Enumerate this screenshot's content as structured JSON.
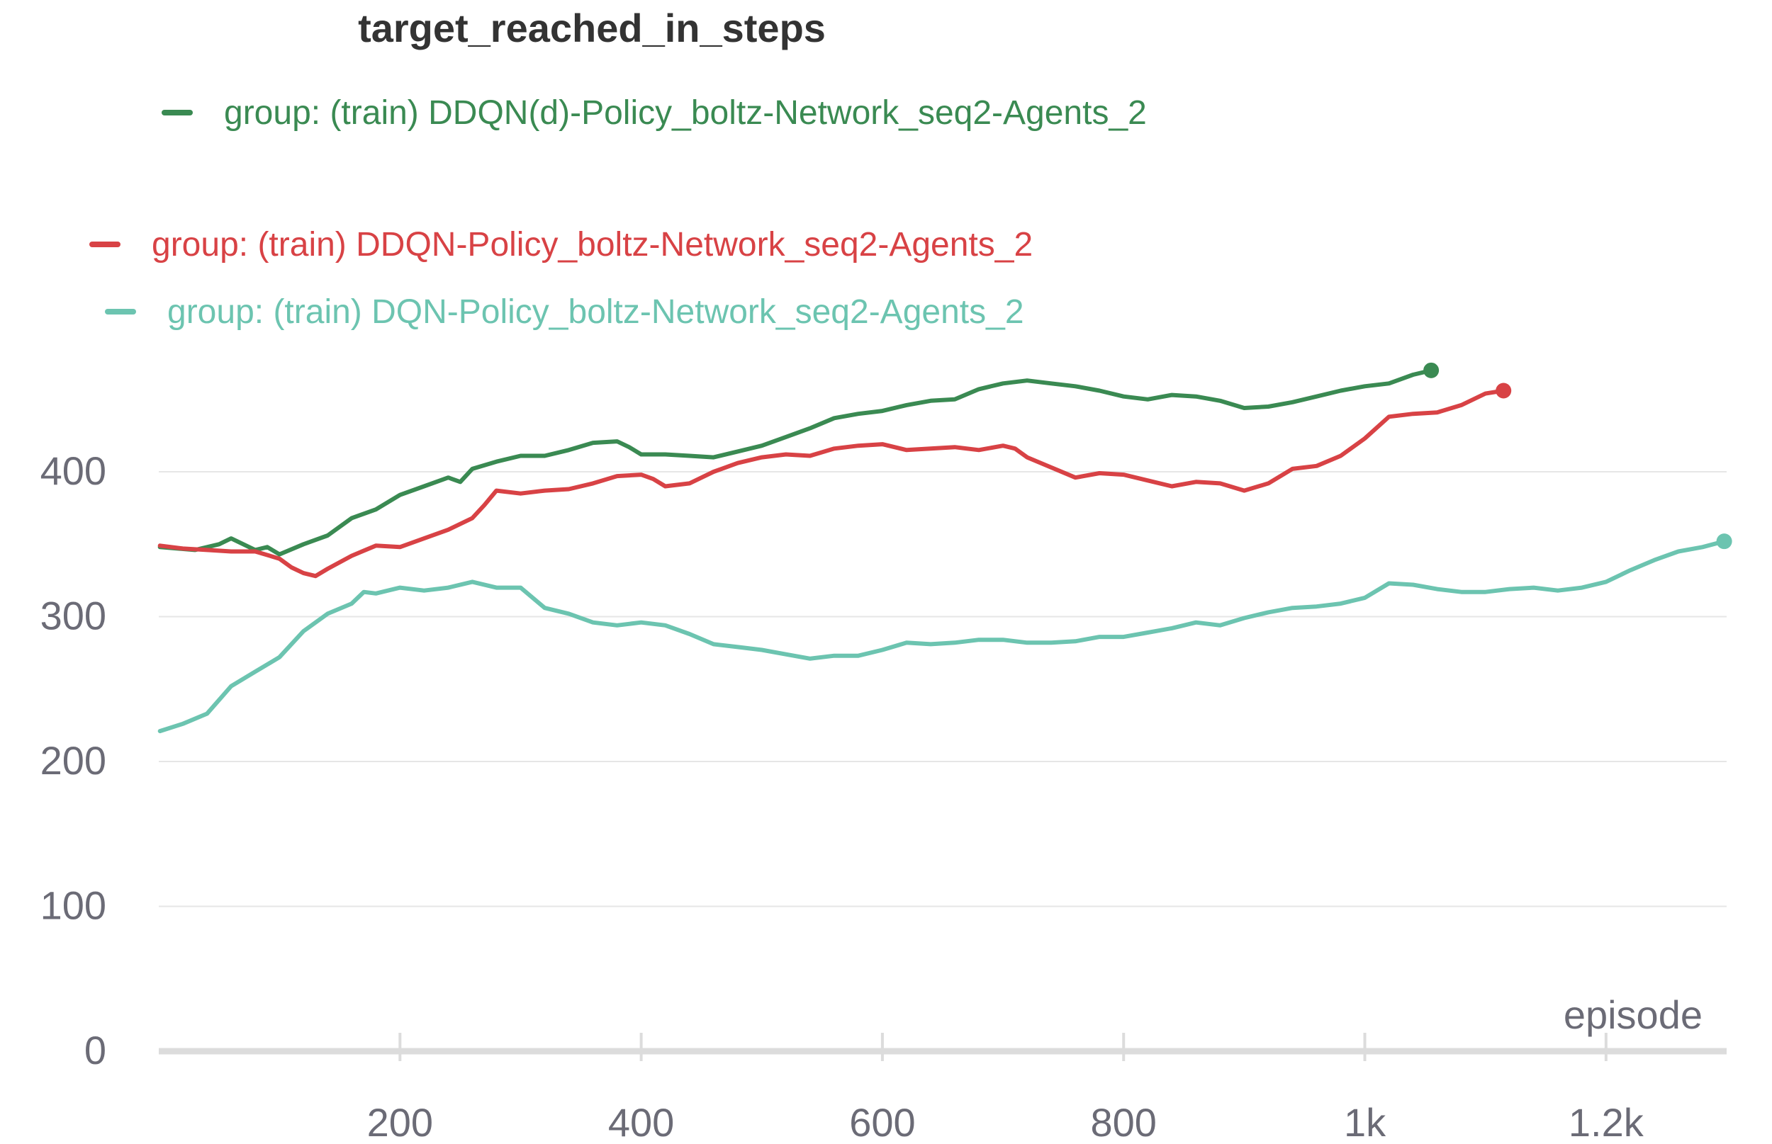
{
  "chart_data": {
    "type": "line",
    "title": "target_reached_in_steps",
    "xlabel": "episode",
    "ylabel": "",
    "xlim": [
      0,
      1300
    ],
    "ylim": [
      0,
      480
    ],
    "x_ticks": [
      {
        "value": 200,
        "label": "200"
      },
      {
        "value": 400,
        "label": "400"
      },
      {
        "value": 600,
        "label": "600"
      },
      {
        "value": 800,
        "label": "800"
      },
      {
        "value": 1000,
        "label": "1k"
      },
      {
        "value": 1200,
        "label": "1.2k"
      }
    ],
    "y_ticks": [
      {
        "value": 0,
        "label": "0"
      },
      {
        "value": 100,
        "label": "100"
      },
      {
        "value": 200,
        "label": "200"
      },
      {
        "value": 300,
        "label": "300"
      },
      {
        "value": 400,
        "label": "400"
      }
    ],
    "grid": "horizontal",
    "legend_position": "top",
    "series": [
      {
        "name": "group: (train) DDQN(d)-Policy_boltz-Network_seq2-Agents_2",
        "color": "#3a8a52",
        "end_marker": true,
        "points": [
          [
            1,
            348
          ],
          [
            30,
            346
          ],
          [
            50,
            350
          ],
          [
            60,
            354
          ],
          [
            80,
            346
          ],
          [
            90,
            348
          ],
          [
            100,
            343
          ],
          [
            120,
            350
          ],
          [
            140,
            356
          ],
          [
            160,
            368
          ],
          [
            180,
            374
          ],
          [
            200,
            384
          ],
          [
            220,
            390
          ],
          [
            240,
            396
          ],
          [
            250,
            393
          ],
          [
            260,
            402
          ],
          [
            280,
            407
          ],
          [
            300,
            411
          ],
          [
            320,
            411
          ],
          [
            340,
            415
          ],
          [
            360,
            420
          ],
          [
            380,
            421
          ],
          [
            390,
            417
          ],
          [
            400,
            412
          ],
          [
            420,
            412
          ],
          [
            440,
            411
          ],
          [
            460,
            410
          ],
          [
            480,
            414
          ],
          [
            500,
            418
          ],
          [
            520,
            424
          ],
          [
            540,
            430
          ],
          [
            560,
            437
          ],
          [
            580,
            440
          ],
          [
            600,
            442
          ],
          [
            620,
            446
          ],
          [
            640,
            449
          ],
          [
            660,
            450
          ],
          [
            680,
            457
          ],
          [
            700,
            461
          ],
          [
            720,
            463
          ],
          [
            740,
            461
          ],
          [
            760,
            459
          ],
          [
            780,
            456
          ],
          [
            800,
            452
          ],
          [
            820,
            450
          ],
          [
            840,
            453
          ],
          [
            860,
            452
          ],
          [
            880,
            449
          ],
          [
            900,
            444
          ],
          [
            920,
            445
          ],
          [
            940,
            448
          ],
          [
            960,
            452
          ],
          [
            980,
            456
          ],
          [
            1000,
            459
          ],
          [
            1020,
            461
          ],
          [
            1040,
            467
          ],
          [
            1055,
            470
          ]
        ]
      },
      {
        "name": "group: (train) DDQN-Policy_boltz-Network_seq2-Agents_2",
        "color": "#d84245",
        "end_marker": true,
        "points": [
          [
            1,
            349
          ],
          [
            20,
            347
          ],
          [
            40,
            346
          ],
          [
            60,
            345
          ],
          [
            80,
            345
          ],
          [
            100,
            340
          ],
          [
            110,
            334
          ],
          [
            120,
            330
          ],
          [
            130,
            328
          ],
          [
            140,
            333
          ],
          [
            160,
            342
          ],
          [
            180,
            349
          ],
          [
            200,
            348
          ],
          [
            220,
            354
          ],
          [
            240,
            360
          ],
          [
            260,
            368
          ],
          [
            270,
            377
          ],
          [
            280,
            387
          ],
          [
            300,
            385
          ],
          [
            320,
            387
          ],
          [
            340,
            388
          ],
          [
            360,
            392
          ],
          [
            380,
            397
          ],
          [
            400,
            398
          ],
          [
            410,
            395
          ],
          [
            420,
            390
          ],
          [
            440,
            392
          ],
          [
            460,
            400
          ],
          [
            480,
            406
          ],
          [
            500,
            410
          ],
          [
            520,
            412
          ],
          [
            540,
            411
          ],
          [
            560,
            416
          ],
          [
            580,
            418
          ],
          [
            600,
            419
          ],
          [
            620,
            415
          ],
          [
            640,
            416
          ],
          [
            660,
            417
          ],
          [
            680,
            415
          ],
          [
            700,
            418
          ],
          [
            710,
            416
          ],
          [
            720,
            410
          ],
          [
            740,
            403
          ],
          [
            760,
            396
          ],
          [
            780,
            399
          ],
          [
            800,
            398
          ],
          [
            820,
            394
          ],
          [
            840,
            390
          ],
          [
            860,
            393
          ],
          [
            880,
            392
          ],
          [
            900,
            387
          ],
          [
            920,
            392
          ],
          [
            940,
            402
          ],
          [
            960,
            404
          ],
          [
            980,
            411
          ],
          [
            1000,
            423
          ],
          [
            1020,
            438
          ],
          [
            1040,
            440
          ],
          [
            1060,
            441
          ],
          [
            1080,
            446
          ],
          [
            1100,
            454
          ],
          [
            1115,
            456
          ]
        ]
      },
      {
        "name": "group: (train) DQN-Policy_boltz-Network_seq2-Agents_2",
        "color": "#6cc4b0",
        "end_marker": true,
        "points": [
          [
            1,
            221
          ],
          [
            20,
            226
          ],
          [
            40,
            233
          ],
          [
            60,
            252
          ],
          [
            80,
            262
          ],
          [
            100,
            272
          ],
          [
            120,
            290
          ],
          [
            140,
            302
          ],
          [
            160,
            309
          ],
          [
            170,
            317
          ],
          [
            180,
            316
          ],
          [
            200,
            320
          ],
          [
            220,
            318
          ],
          [
            240,
            320
          ],
          [
            260,
            324
          ],
          [
            280,
            320
          ],
          [
            300,
            320
          ],
          [
            320,
            306
          ],
          [
            340,
            302
          ],
          [
            360,
            296
          ],
          [
            380,
            294
          ],
          [
            400,
            296
          ],
          [
            420,
            294
          ],
          [
            440,
            288
          ],
          [
            460,
            281
          ],
          [
            480,
            279
          ],
          [
            500,
            277
          ],
          [
            520,
            274
          ],
          [
            540,
            271
          ],
          [
            560,
            273
          ],
          [
            580,
            273
          ],
          [
            600,
            277
          ],
          [
            620,
            282
          ],
          [
            640,
            281
          ],
          [
            660,
            282
          ],
          [
            680,
            284
          ],
          [
            700,
            284
          ],
          [
            720,
            282
          ],
          [
            740,
            282
          ],
          [
            760,
            283
          ],
          [
            780,
            286
          ],
          [
            800,
            286
          ],
          [
            820,
            289
          ],
          [
            840,
            292
          ],
          [
            860,
            296
          ],
          [
            880,
            294
          ],
          [
            900,
            299
          ],
          [
            920,
            303
          ],
          [
            940,
            306
          ],
          [
            960,
            307
          ],
          [
            980,
            309
          ],
          [
            1000,
            313
          ],
          [
            1020,
            323
          ],
          [
            1040,
            322
          ],
          [
            1060,
            319
          ],
          [
            1080,
            317
          ],
          [
            1100,
            317
          ],
          [
            1120,
            319
          ],
          [
            1140,
            320
          ],
          [
            1160,
            318
          ],
          [
            1180,
            320
          ],
          [
            1200,
            324
          ],
          [
            1220,
            332
          ],
          [
            1240,
            339
          ],
          [
            1260,
            345
          ],
          [
            1280,
            348
          ],
          [
            1298,
            352
          ]
        ]
      }
    ]
  }
}
